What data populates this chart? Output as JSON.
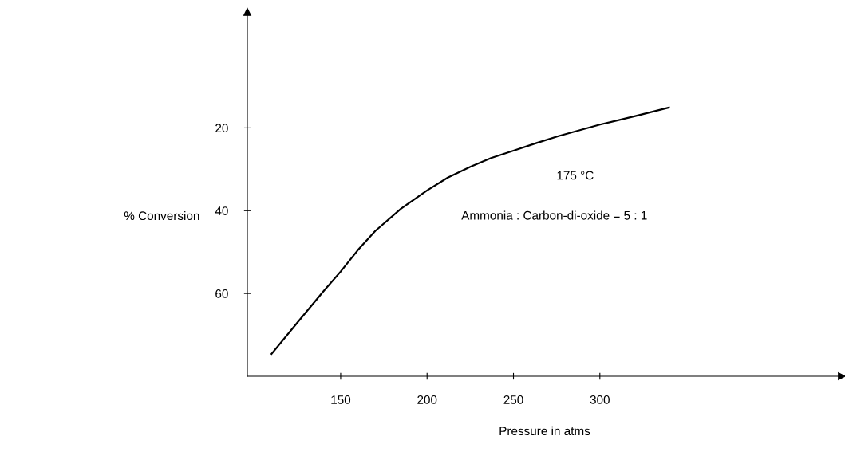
{
  "chart_data": {
    "type": "line",
    "xlabel": "Pressure in atms",
    "ylabel": "% Conversion",
    "x": [
      110,
      125,
      140,
      150,
      160,
      170,
      185,
      200,
      212,
      225,
      237,
      250,
      263,
      276,
      288,
      300,
      320,
      340
    ],
    "series": [
      {
        "color": "#000000",
        "values": [
          74.6,
          67,
          59.5,
          54.7,
          49.5,
          44.9,
          39.5,
          35.1,
          32,
          29.4,
          27.3,
          25.5,
          23.7,
          22,
          20.6,
          19.2,
          17.2,
          15.1
        ]
      }
    ],
    "xlim": [
      96,
      440
    ],
    "ylim": [
      80,
      -8
    ],
    "xticks": [
      150,
      200,
      250,
      300
    ],
    "yticks": [
      20,
      40,
      60
    ],
    "annotations": [
      "175 °C",
      "Ammonia : Carbon-di-oxide = 5 : 1"
    ],
    "grid": false,
    "legend": false,
    "marker": "none",
    "line_style": "solid"
  }
}
